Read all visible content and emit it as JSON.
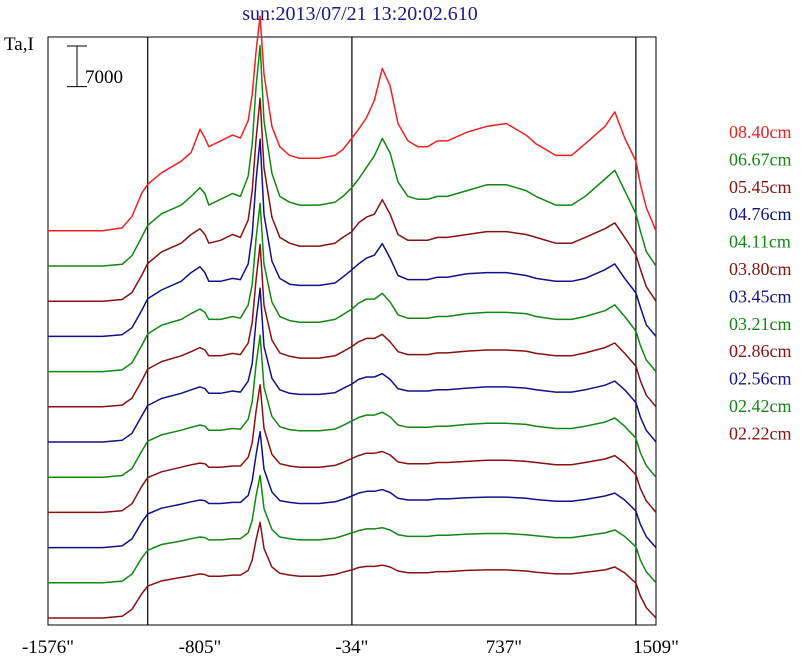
{
  "title": "sun:2013/07/21 13:20:02.610",
  "ylabel": "Ta,I",
  "scale_bar_label": "7000",
  "chart_data": {
    "type": "line",
    "title": "sun:2013/07/21 13:20:02.610",
    "xlabel": "",
    "ylabel": "Ta,I",
    "xlim": [
      -1576,
      1509
    ],
    "x_ticks": [
      "-1576\"",
      "-805\"",
      "-34\"",
      "737\"",
      "1509\""
    ],
    "x_tick_values": [
      -1576,
      -805,
      -34,
      737,
      1509
    ],
    "vertical_lines_x": [
      -1070,
      -34,
      1407
    ],
    "scale_bar": 7000,
    "grid": false,
    "legend_position": "right",
    "x": [
      -1576,
      -1300,
      -1200,
      -1150,
      -1100,
      -1070,
      -1000,
      -900,
      -850,
      -805,
      -780,
      -760,
      -700,
      -640,
      -600,
      -560,
      -540,
      -520,
      -500,
      -480,
      -440,
      -400,
      -350,
      -300,
      -200,
      -120,
      -80,
      -34,
      0,
      40,
      80,
      120,
      160,
      200,
      250,
      300,
      350,
      400,
      450,
      550,
      650,
      750,
      850,
      900,
      1000,
      1080,
      1150,
      1250,
      1300,
      1350,
      1407,
      1430,
      1460,
      1509
    ],
    "series": [
      {
        "name": "08.40cm",
        "color": "#ee2222",
        "offset": 11,
        "values": [
          0,
          0,
          500,
          2500,
          6500,
          8000,
          10000,
          12000,
          13500,
          17500,
          16000,
          14500,
          15500,
          16500,
          16000,
          19000,
          23500,
          31000,
          37000,
          27000,
          18000,
          14500,
          13000,
          12500,
          12500,
          13000,
          14000,
          16000,
          17500,
          19500,
          22500,
          28000,
          25000,
          18500,
          15500,
          14500,
          14500,
          15500,
          15500,
          17000,
          18000,
          18500,
          16500,
          15000,
          13000,
          13000,
          15000,
          18000,
          20500,
          16000,
          12000,
          8000,
          4000,
          0
        ]
      },
      {
        "name": "06.67cm",
        "color": "#118811",
        "offset": 10,
        "values": [
          0,
          0,
          300,
          1800,
          5000,
          7000,
          9000,
          10500,
          12000,
          13500,
          12500,
          10500,
          11500,
          12500,
          12000,
          15500,
          21000,
          31000,
          38000,
          25000,
          16000,
          12000,
          11000,
          10500,
          10500,
          11000,
          12000,
          13500,
          15000,
          17000,
          19000,
          22000,
          19500,
          14500,
          12000,
          11500,
          11500,
          12000,
          12000,
          13000,
          14000,
          14000,
          13000,
          12000,
          10500,
          10500,
          12000,
          15000,
          16500,
          13000,
          9000,
          6000,
          2500,
          0
        ]
      },
      {
        "name": "05.45cm",
        "color": "#881111",
        "offset": 9,
        "values": [
          0,
          0,
          300,
          1500,
          4500,
          6500,
          8500,
          10000,
          11500,
          12500,
          11500,
          10000,
          10500,
          11500,
          11000,
          14000,
          19000,
          28000,
          35000,
          23000,
          14500,
          11000,
          10000,
          9500,
          9500,
          10000,
          11000,
          12000,
          13500,
          14500,
          15000,
          17500,
          15000,
          11500,
          10500,
          10500,
          10500,
          11000,
          11000,
          11500,
          12000,
          12000,
          11500,
          11000,
          10000,
          10000,
          11000,
          12500,
          13500,
          11000,
          8000,
          5500,
          2500,
          0
        ]
      },
      {
        "name": "04.76cm",
        "color": "#111188",
        "offset": 8,
        "values": [
          0,
          0,
          300,
          1500,
          4500,
          6500,
          8000,
          9500,
          11000,
          12000,
          11000,
          9500,
          9500,
          10000,
          9800,
          12500,
          17500,
          27000,
          34000,
          21000,
          13000,
          10000,
          9000,
          8800,
          8800,
          9200,
          10200,
          11500,
          12500,
          13500,
          14000,
          16000,
          13500,
          10500,
          9800,
          9800,
          9800,
          10200,
          10200,
          10800,
          11000,
          11000,
          10500,
          10000,
          9500,
          9500,
          10000,
          11500,
          12500,
          10000,
          7500,
          5000,
          2000,
          0
        ]
      },
      {
        "name": "04.11cm",
        "color": "#118811",
        "offset": 7,
        "values": [
          0,
          0,
          300,
          1500,
          4500,
          6500,
          8000,
          9000,
          10000,
          10800,
          10200,
          9000,
          9000,
          9500,
          9200,
          11500,
          15000,
          23000,
          29000,
          18500,
          12000,
          9500,
          8800,
          8500,
          8500,
          9000,
          9800,
          10800,
          11800,
          12500,
          12500,
          13500,
          12000,
          9800,
          9200,
          9200,
          9200,
          9500,
          9500,
          10000,
          10200,
          10200,
          10000,
          9500,
          9000,
          9000,
          9500,
          10500,
          11500,
          9500,
          7000,
          4500,
          2000,
          0
        ]
      },
      {
        "name": "03.80cm",
        "color": "#881111",
        "offset": 6,
        "values": [
          0,
          0,
          300,
          1500,
          4500,
          6500,
          7800,
          8800,
          9500,
          10200,
          9800,
          8800,
          8800,
          9200,
          9000,
          11000,
          14500,
          22000,
          28000,
          17500,
          11500,
          9300,
          8700,
          8400,
          8400,
          8800,
          9500,
          10400,
          11200,
          11800,
          11800,
          12500,
          11200,
          9500,
          9000,
          9000,
          9000,
          9300,
          9300,
          9600,
          9800,
          9800,
          9600,
          9200,
          8800,
          8800,
          9300,
          10200,
          11000,
          9200,
          7000,
          4500,
          2000,
          0
        ]
      },
      {
        "name": "03.45cm",
        "color": "#111188",
        "offset": 5,
        "values": [
          0,
          0,
          300,
          1500,
          4500,
          6300,
          7500,
          8400,
          9000,
          9500,
          9200,
          8400,
          8400,
          8800,
          8600,
          10500,
          13500,
          21000,
          26500,
          16500,
          11000,
          9000,
          8400,
          8200,
          8200,
          8500,
          9200,
          10000,
          10800,
          11200,
          11200,
          11800,
          10800,
          9200,
          8800,
          8800,
          8800,
          9000,
          9000,
          9300,
          9500,
          9500,
          9300,
          9000,
          8600,
          8600,
          9000,
          9800,
          10500,
          9000,
          6800,
          4300,
          2000,
          0
        ]
      },
      {
        "name": "03.21cm",
        "color": "#118811",
        "offset": 4,
        "values": [
          0,
          0,
          300,
          1500,
          4500,
          6200,
          7300,
          8100,
          8600,
          9000,
          8800,
          8100,
          8100,
          8400,
          8300,
          10000,
          13000,
          19500,
          24500,
          15500,
          10500,
          8700,
          8200,
          8000,
          8000,
          8300,
          8900,
          9700,
          10300,
          10700,
          10700,
          11200,
          10400,
          9000,
          8600,
          8600,
          8600,
          8800,
          8800,
          9100,
          9300,
          9300,
          9100,
          8800,
          8400,
          8400,
          8800,
          9500,
          10200,
          8800,
          6700,
          4200,
          2000,
          0
        ]
      },
      {
        "name": "02.86cm",
        "color": "#881111",
        "offset": 3,
        "values": [
          0,
          0,
          300,
          1500,
          4500,
          6000,
          7000,
          7800,
          8200,
          8500,
          8400,
          7800,
          7800,
          8000,
          8000,
          9500,
          12000,
          17500,
          22000,
          14500,
          10000,
          8400,
          8000,
          7800,
          7800,
          8100,
          8600,
          9300,
          9800,
          10200,
          10200,
          10500,
          9900,
          8700,
          8400,
          8400,
          8400,
          8600,
          8600,
          8800,
          9000,
          9000,
          8800,
          8600,
          8200,
          8200,
          8600,
          9200,
          9800,
          8500,
          6500,
          4100,
          2000,
          0
        ]
      },
      {
        "name": "02.56cm",
        "color": "#111188",
        "offset": 2,
        "values": [
          0,
          0,
          300,
          1500,
          4400,
          5800,
          6800,
          7500,
          7900,
          8200,
          8100,
          7600,
          7600,
          7800,
          7800,
          9000,
          11500,
          16000,
          20000,
          13500,
          9600,
          8100,
          7800,
          7600,
          7600,
          7900,
          8300,
          8900,
          9400,
          9700,
          9700,
          10000,
          9500,
          8500,
          8200,
          8200,
          8200,
          8400,
          8400,
          8600,
          8700,
          8700,
          8500,
          8300,
          8000,
          8000,
          8300,
          8900,
          9400,
          8200,
          6300,
          4000,
          1900,
          0
        ]
      },
      {
        "name": "02.42cm",
        "color": "#118811",
        "offset": 1,
        "values": [
          0,
          0,
          300,
          1500,
          4300,
          5600,
          6600,
          7200,
          7600,
          7900,
          7800,
          7400,
          7400,
          7600,
          7600,
          8600,
          10800,
          15000,
          18500,
          12800,
          9200,
          7900,
          7600,
          7400,
          7400,
          7700,
          8100,
          8600,
          9000,
          9300,
          9300,
          9500,
          9100,
          8300,
          8000,
          8000,
          8000,
          8200,
          8200,
          8400,
          8500,
          8500,
          8300,
          8100,
          7800,
          7800,
          8100,
          8600,
          9100,
          8000,
          6200,
          3900,
          1900,
          0
        ]
      },
      {
        "name": "02.22cm",
        "color": "#881111",
        "offset": 0,
        "values": [
          0,
          0,
          300,
          1500,
          4200,
          5500,
          6400,
          7000,
          7300,
          7600,
          7500,
          7200,
          7200,
          7400,
          7400,
          8200,
          10000,
          13500,
          16500,
          12000,
          8800,
          7700,
          7400,
          7200,
          7200,
          7500,
          7900,
          8300,
          8700,
          8900,
          8900,
          9100,
          8800,
          8100,
          7800,
          7800,
          7800,
          8000,
          8000,
          8200,
          8300,
          8300,
          8100,
          7900,
          7600,
          7600,
          7900,
          8300,
          8800,
          7800,
          6000,
          3800,
          1800,
          0
        ]
      }
    ]
  }
}
